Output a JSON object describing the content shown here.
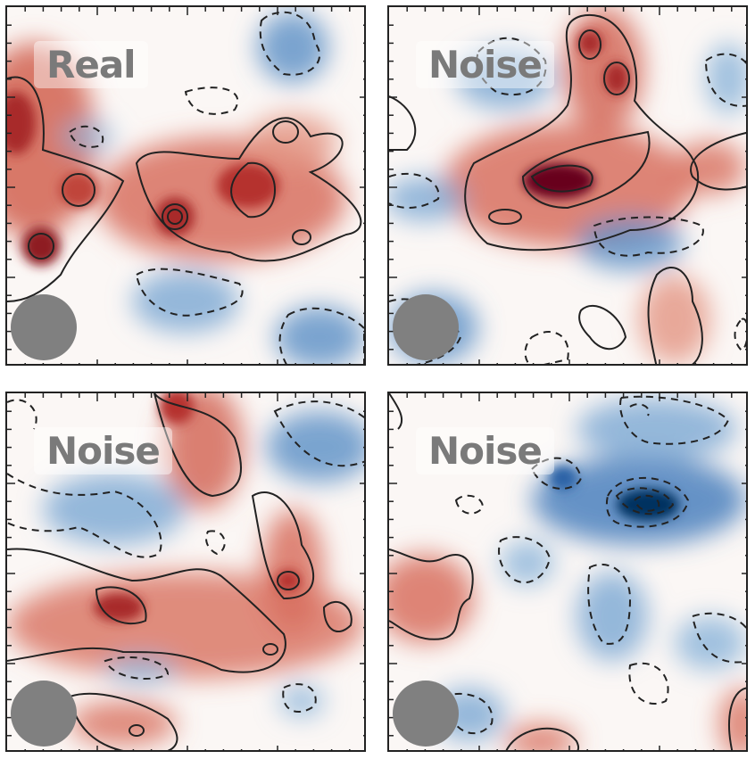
{
  "panels": [
    {
      "label": "Real"
    },
    {
      "label": "Noise"
    },
    {
      "label": "Noise"
    },
    {
      "label": "Noise"
    }
  ],
  "colors": {
    "positive": "#b2182b",
    "positive_dark": "#67001f",
    "negative": "#2166ac",
    "negative_dark": "#053061",
    "contour": "#222222",
    "beam": "#808080"
  },
  "icons": [
    "beam-ellipse-icon"
  ]
}
